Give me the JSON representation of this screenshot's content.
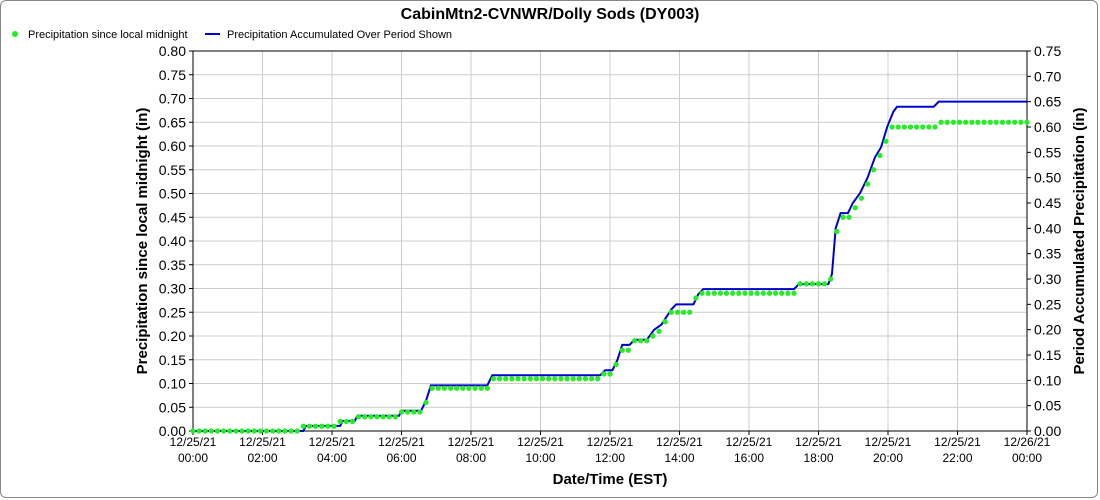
{
  "chart_data": {
    "type": "line",
    "title": "CabinMtn2-CVNWR/Dolly Sods (DY003)",
    "xlabel": "Date/Time (EST)",
    "ylabel_left": "Precipitation since local midnight (in)",
    "ylabel_right": "Period Accumulated Precipitation (in)",
    "ylim_left": [
      0,
      0.8
    ],
    "ylim_right": [
      0,
      0.75
    ],
    "yticks_left": [
      "0.00",
      "0.05",
      "0.10",
      "0.15",
      "0.20",
      "0.25",
      "0.30",
      "0.35",
      "0.40",
      "0.45",
      "0.50",
      "0.55",
      "0.60",
      "0.65",
      "0.70",
      "0.75",
      "0.80"
    ],
    "yticks_right": [
      "0.00",
      "0.05",
      "0.10",
      "0.15",
      "0.20",
      "0.25",
      "0.30",
      "0.35",
      "0.40",
      "0.45",
      "0.50",
      "0.55",
      "0.60",
      "0.65",
      "0.70",
      "0.75"
    ],
    "xlim_hours": [
      0,
      24
    ],
    "xticks": [
      {
        "date": "12/25/21",
        "time": "00:00"
      },
      {
        "date": "12/25/21",
        "time": "02:00"
      },
      {
        "date": "12/25/21",
        "time": "04:00"
      },
      {
        "date": "12/25/21",
        "time": "06:00"
      },
      {
        "date": "12/25/21",
        "time": "08:00"
      },
      {
        "date": "12/25/21",
        "time": "10:00"
      },
      {
        "date": "12/25/21",
        "time": "12:00"
      },
      {
        "date": "12/25/21",
        "time": "14:00"
      },
      {
        "date": "12/25/21",
        "time": "16:00"
      },
      {
        "date": "12/25/21",
        "time": "18:00"
      },
      {
        "date": "12/25/21",
        "time": "20:00"
      },
      {
        "date": "12/25/21",
        "time": "22:00"
      },
      {
        "date": "12/26/21",
        "time": "00:00"
      }
    ],
    "grid": true,
    "legend_position": "top-left",
    "series": [
      {
        "name": "Precipitation since local midnight",
        "axis": "left",
        "style": "points",
        "color": "#22ee22",
        "points": [
          [
            0,
            0
          ],
          [
            0.25,
            0
          ],
          [
            0.5,
            0
          ],
          [
            0.75,
            0
          ],
          [
            1,
            0
          ],
          [
            1.25,
            0
          ],
          [
            1.5,
            0
          ],
          [
            1.75,
            0
          ],
          [
            2,
            0
          ],
          [
            2.25,
            0
          ],
          [
            2.5,
            0
          ],
          [
            2.75,
            0
          ],
          [
            3,
            0
          ],
          [
            3.25,
            0
          ],
          [
            3.5,
            0
          ],
          [
            3.75,
            0
          ],
          [
            4,
            0
          ],
          [
            4.25,
            0
          ],
          [
            4.5,
            0.01
          ],
          [
            4.75,
            0.01
          ],
          [
            5,
            0.01
          ],
          [
            5.25,
            0.01
          ],
          [
            5.5,
            0.01
          ],
          [
            5.75,
            0.01
          ],
          [
            6,
            0.02
          ],
          [
            6.25,
            0.02
          ],
          [
            6.5,
            0.02
          ],
          [
            6.75,
            0.03
          ],
          [
            7,
            0.03
          ],
          [
            7.25,
            0.03
          ],
          [
            7.5,
            0.03
          ],
          [
            7.75,
            0.03
          ],
          [
            8,
            0.03
          ],
          [
            8.25,
            0.03
          ],
          [
            8.5,
            0.04
          ],
          [
            8.75,
            0.04
          ],
          [
            9,
            0.04
          ],
          [
            9.25,
            0.04
          ],
          [
            9.5,
            0.06
          ],
          [
            9.75,
            0.09
          ],
          [
            10,
            0.09
          ],
          [
            10.25,
            0.09
          ],
          [
            10.5,
            0.09
          ],
          [
            10.75,
            0.09
          ],
          [
            11,
            0.09
          ],
          [
            11.25,
            0.09
          ],
          [
            11.5,
            0.09
          ],
          [
            11.75,
            0.09
          ],
          [
            12,
            0.09
          ],
          [
            12.25,
            0.11
          ],
          [
            12.5,
            0.11
          ],
          [
            12.75,
            0.11
          ],
          [
            13,
            0.11
          ],
          [
            13.25,
            0.11
          ],
          [
            13.5,
            0.11
          ],
          [
            13.75,
            0.11
          ],
          [
            14,
            0.11
          ],
          [
            14.25,
            0.11
          ],
          [
            14.5,
            0.11
          ],
          [
            14.75,
            0.11
          ],
          [
            15,
            0.11
          ],
          [
            15.25,
            0.11
          ],
          [
            15.5,
            0.11
          ],
          [
            15.75,
            0.11
          ],
          [
            16,
            0.11
          ],
          [
            16.25,
            0.11
          ],
          [
            16.5,
            0.11
          ],
          [
            16.75,
            0.12
          ],
          [
            17,
            0.12
          ],
          [
            17.25,
            0.14
          ],
          [
            17.5,
            0.17
          ],
          [
            17.75,
            0.17
          ],
          [
            18,
            0.19
          ],
          [
            18.25,
            0.19
          ],
          [
            18.5,
            0.19
          ],
          [
            18.75,
            0.2
          ],
          [
            19,
            0.21
          ],
          [
            19.25,
            0.23
          ],
          [
            19.5,
            0.25
          ],
          [
            19.75,
            0.25
          ],
          [
            20,
            0.25
          ],
          [
            20.25,
            0.25
          ],
          [
            20.5,
            0.28
          ],
          [
            20.75,
            0.29
          ],
          [
            21,
            0.29
          ],
          [
            21.25,
            0.29
          ],
          [
            21.5,
            0.29
          ],
          [
            21.75,
            0.29
          ],
          [
            22,
            0.29
          ],
          [
            22.25,
            0.29
          ],
          [
            22.5,
            0.29
          ],
          [
            22.75,
            0.29
          ],
          [
            23,
            0.29
          ],
          [
            23.25,
            0.29
          ],
          [
            23.5,
            0.29
          ],
          [
            23.75,
            0.29
          ],
          [
            24,
            0.29
          ],
          [
            24.25,
            0.29
          ],
          [
            24.5,
            0.29
          ],
          [
            24.75,
            0.31
          ],
          [
            25,
            0.31
          ],
          [
            25.25,
            0.31
          ],
          [
            25.5,
            0.31
          ],
          [
            25.75,
            0.31
          ],
          [
            26,
            0.32
          ],
          [
            26.25,
            0.42
          ],
          [
            26.5,
            0.45
          ],
          [
            26.75,
            0.45
          ],
          [
            27,
            0.47
          ],
          [
            27.25,
            0.49
          ],
          [
            27.5,
            0.52
          ],
          [
            27.75,
            0.55
          ],
          [
            28,
            0.58
          ],
          [
            28.25,
            0.61
          ],
          [
            28.5,
            0.64
          ],
          [
            28.75,
            0.64
          ],
          [
            29,
            0.64
          ],
          [
            29.25,
            0.64
          ],
          [
            29.5,
            0.64
          ],
          [
            29.75,
            0.64
          ],
          [
            30,
            0.64
          ],
          [
            30.25,
            0.64
          ],
          [
            30.5,
            0.65
          ],
          [
            30.75,
            0.65
          ],
          [
            31,
            0.65
          ],
          [
            31.25,
            0.65
          ],
          [
            31.5,
            0.65
          ],
          [
            31.75,
            0.65
          ],
          [
            32,
            0.65
          ],
          [
            32.25,
            0.65
          ],
          [
            32.5,
            0.65
          ],
          [
            32.75,
            0.65
          ],
          [
            33,
            0.65
          ],
          [
            33.25,
            0.65
          ],
          [
            33.5,
            0.65
          ],
          [
            33.75,
            0.65
          ],
          [
            34,
            0.65
          ]
        ]
      },
      {
        "name": "Precipitation Accumulated Over Period Shown",
        "axis": "right",
        "style": "line",
        "color": "#0000cc",
        "points": [
          [
            0,
            0
          ],
          [
            4.5,
            0
          ],
          [
            4.6,
            0.01
          ],
          [
            6,
            0.01
          ],
          [
            6.1,
            0.02
          ],
          [
            6.6,
            0.02
          ],
          [
            6.7,
            0.03
          ],
          [
            8.4,
            0.03
          ],
          [
            8.5,
            0.04
          ],
          [
            9.3,
            0.04
          ],
          [
            9.5,
            0.06
          ],
          [
            9.7,
            0.09
          ],
          [
            12,
            0.09
          ],
          [
            12.2,
            0.11
          ],
          [
            16.6,
            0.11
          ],
          [
            16.8,
            0.12
          ],
          [
            17.1,
            0.12
          ],
          [
            17.3,
            0.14
          ],
          [
            17.5,
            0.17
          ],
          [
            17.8,
            0.17
          ],
          [
            18,
            0.18
          ],
          [
            18.5,
            0.18
          ],
          [
            18.8,
            0.2
          ],
          [
            19.1,
            0.21
          ],
          [
            19.5,
            0.24
          ],
          [
            19.7,
            0.25
          ],
          [
            20.4,
            0.25
          ],
          [
            20.6,
            0.27
          ],
          [
            20.8,
            0.28
          ],
          [
            24.5,
            0.28
          ],
          [
            24.7,
            0.29
          ],
          [
            25.9,
            0.29
          ],
          [
            26.05,
            0.31
          ],
          [
            26.2,
            0.4
          ],
          [
            26.4,
            0.43
          ],
          [
            26.7,
            0.43
          ],
          [
            26.9,
            0.45
          ],
          [
            27.2,
            0.47
          ],
          [
            27.5,
            0.5
          ],
          [
            27.8,
            0.54
          ],
          [
            28.05,
            0.56
          ],
          [
            28.3,
            0.6
          ],
          [
            28.55,
            0.63
          ],
          [
            28.7,
            0.64
          ],
          [
            30.2,
            0.64
          ],
          [
            30.4,
            0.65
          ],
          [
            34,
            0.65
          ]
        ]
      }
    ]
  },
  "legend": [
    {
      "label": "Precipitation since local midnight",
      "icon": "green-dot-icon"
    },
    {
      "label": "Precipitation Accumulated Over Period Shown",
      "icon": "blue-line-icon"
    }
  ]
}
